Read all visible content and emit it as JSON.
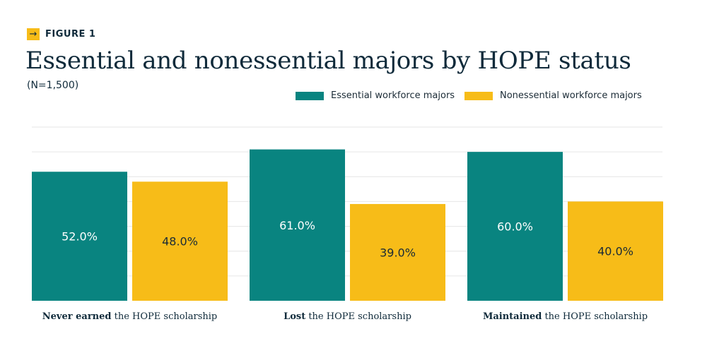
{
  "figure": {
    "tag": "FIGURE 1"
  },
  "title": "Essential and nonessential majors by HOPE status",
  "subtitle": "(N=1,500)",
  "legend": [
    {
      "label": "Essential workforce majors",
      "color": "#098480"
    },
    {
      "label": "Nonessential workforce majors",
      "color": "#f7bc18"
    }
  ],
  "chart_data": {
    "type": "bar",
    "categories": [
      {
        "bold": "Never earned",
        "rest": " the HOPE scholarship"
      },
      {
        "bold": "Lost",
        "rest": " the HOPE scholarship"
      },
      {
        "bold": "Maintained",
        "rest": " the HOPE scholarship"
      }
    ],
    "series": [
      {
        "name": "Essential workforce majors",
        "color": "#098480",
        "values": [
          52.0,
          61.0,
          60.0
        ],
        "labels": [
          "52.0%",
          "61.0%",
          "60.0%"
        ]
      },
      {
        "name": "Nonessential workforce majors",
        "color": "#f7bc18",
        "values": [
          48.0,
          39.0,
          40.0
        ],
        "labels": [
          "48.0%",
          "39.0%",
          "40.0%"
        ]
      }
    ],
    "ylim": [
      0,
      70
    ],
    "grid": true,
    "legend_position": "top-right"
  }
}
